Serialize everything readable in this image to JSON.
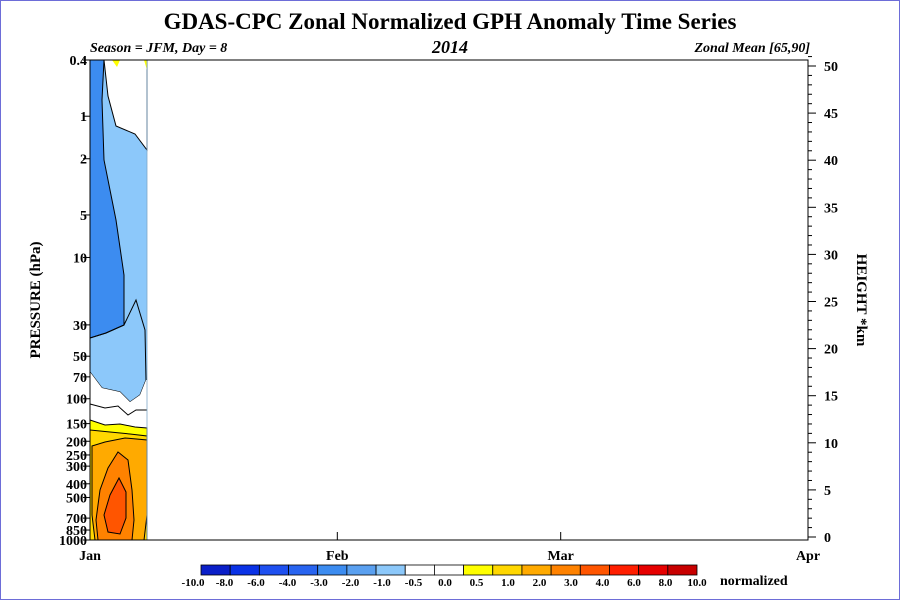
{
  "chart_data": {
    "type": "heatmap",
    "title": "GDAS-CPC Zonal Normalized GPH Anomaly Time Series",
    "subtitle_left": "Season = JFM, Day =   8",
    "subtitle_center": "2014",
    "subtitle_right": "Zonal Mean [65,90]",
    "ylabel_left": "PRESSURE (hPa)",
    "ylabel_right": "HEIGHT *km",
    "x_ticks": [
      "Jan",
      "Feb",
      "Mar",
      "Apr"
    ],
    "pressure_ticks": [
      "0.4",
      "1",
      "2",
      "5",
      "10",
      "30",
      "50",
      "70",
      "100",
      "150",
      "200",
      "250",
      "300",
      "400",
      "500",
      "700",
      "850",
      "1000"
    ],
    "height_ticks": [
      "0",
      "5",
      "10",
      "15",
      "20",
      "25",
      "30",
      "35",
      "40",
      "45",
      "50"
    ],
    "colorbar_labels": [
      "-10.0",
      "-8.0",
      "-6.0",
      "-4.0",
      "-3.0",
      "-2.0",
      "-1.0",
      "-0.5",
      "0.0",
      "0.5",
      "1.0",
      "2.0",
      "3.0",
      "4.0",
      "6.0",
      "8.0",
      "10.0"
    ],
    "colorbar_colors": [
      "#0a1fc8",
      "#0a32e6",
      "#1e50f0",
      "#2864f0",
      "#3c8cf0",
      "#5aa0f0",
      "#8cc8fa",
      "#ffffff",
      "#ffffff",
      "#ffff00",
      "#ffd700",
      "#ffaa00",
      "#ff8200",
      "#ff5500",
      "#ff1e00",
      "#e60000",
      "#c80000"
    ],
    "colorbar_unit": "normalized",
    "days_plotted": 8,
    "x_range": [
      "Jan 1",
      "Apr 1"
    ]
  }
}
